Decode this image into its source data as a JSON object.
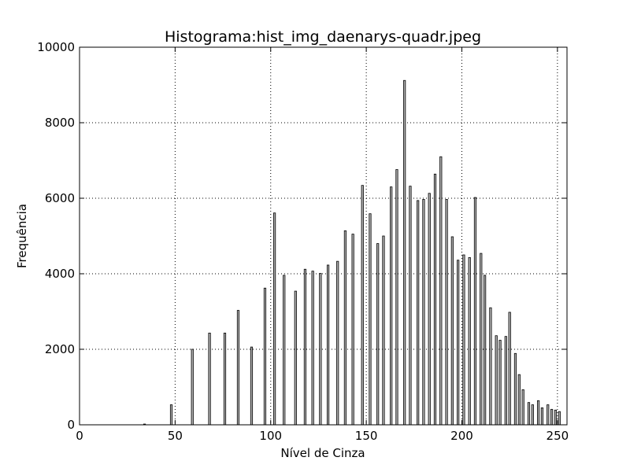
{
  "chart_data": {
    "type": "bar",
    "title": "Histograma:hist_img_daenarys-quadr.jpeg",
    "xlabel": "Nível de Cinza",
    "ylabel": "Frequência",
    "xlim": [
      0,
      255
    ],
    "ylim": [
      0,
      10000
    ],
    "grid": true,
    "bar_color": "#b0b0b0",
    "xticks": [
      0,
      50,
      100,
      150,
      200,
      250
    ],
    "yticks": [
      0,
      2000,
      4000,
      6000,
      8000,
      10000
    ],
    "x": [
      34,
      48,
      59,
      68,
      76,
      83,
      90,
      97,
      102,
      107,
      113,
      118,
      122,
      126,
      130,
      135,
      139,
      143,
      148,
      152,
      156,
      159,
      163,
      166,
      170,
      173,
      177,
      180,
      183,
      186,
      189,
      192,
      195,
      198,
      201,
      204,
      207,
      210,
      212,
      215,
      218,
      220,
      223,
      225,
      228,
      230,
      232,
      235,
      237,
      240,
      242,
      245,
      247,
      249,
      251
    ],
    "values": [
      20,
      530,
      2000,
      2430,
      2430,
      3030,
      2060,
      3620,
      5610,
      3960,
      3540,
      4120,
      4070,
      4010,
      4230,
      4330,
      5140,
      5050,
      6340,
      5590,
      4800,
      5000,
      6300,
      6760,
      9120,
      6320,
      5940,
      5970,
      6130,
      6640,
      7100,
      5970,
      4980,
      4360,
      4500,
      4430,
      6020,
      4540,
      3960,
      3100,
      2360,
      2240,
      2340,
      2980,
      1890,
      1330,
      930,
      590,
      530,
      640,
      450,
      530,
      410,
      390,
      350
    ]
  }
}
